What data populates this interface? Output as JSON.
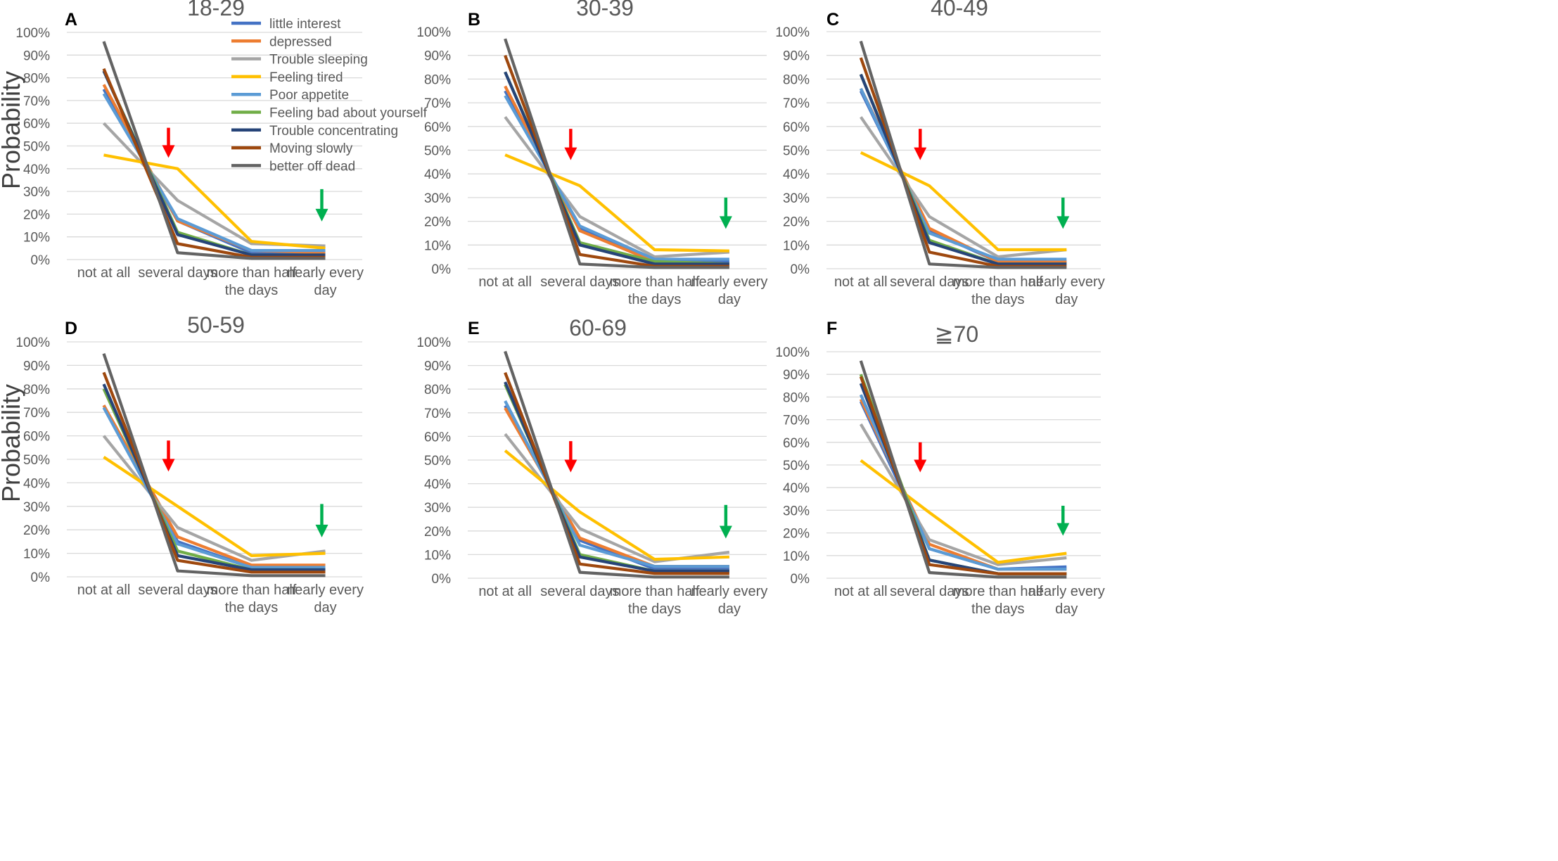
{
  "colors": {
    "series": [
      "#4472c4",
      "#ed7d31",
      "#a5a5a5",
      "#ffc000",
      "#5b9bd5",
      "#70ad47",
      "#264478",
      "#9e480e",
      "#636363"
    ],
    "arrow_red": "#ff0000",
    "arrow_green": "#00b050"
  },
  "legend": [
    "little interest",
    "depressed",
    "Trouble sleeping",
    "Feeling tired",
    "Poor appetite",
    "Feeling bad about yourself",
    "Trouble concentrating",
    "Moving  slowly",
    "better off dead"
  ],
  "categories": [
    {
      "lines": [
        "not at all"
      ]
    },
    {
      "lines": [
        "several days"
      ]
    },
    {
      "lines": [
        "more than half",
        "the days"
      ]
    },
    {
      "lines": [
        "nearly every",
        "day"
      ]
    }
  ],
  "y_ticks": [
    "0%",
    "10%",
    "20%",
    "30%",
    "40%",
    "50%",
    "60%",
    "70%",
    "80%",
    "90%",
    "100%"
  ],
  "ylabel": "Probability",
  "chart_data": [
    {
      "type": "line",
      "letter": "A",
      "title": "18-29",
      "ylim": [
        0,
        100
      ],
      "ylabel": "Probability",
      "categories": [
        "not at all",
        "several days",
        "more than half the days",
        "nearly every day"
      ],
      "arrows": {
        "red_category": 1,
        "red_from": 58,
        "red_to": 46,
        "green_category": 3,
        "green_from": 31,
        "green_to": 18
      },
      "series": [
        {
          "name": "little interest",
          "values": [
            75,
            17,
            3,
            3
          ]
        },
        {
          "name": "depressed",
          "values": [
            77,
            17,
            4,
            3
          ]
        },
        {
          "name": "Trouble sleeping",
          "values": [
            60,
            26,
            7,
            6
          ]
        },
        {
          "name": "Feeling tired",
          "values": [
            46,
            40,
            8,
            5
          ]
        },
        {
          "name": "Poor appetite",
          "values": [
            73,
            18,
            4,
            4
          ]
        },
        {
          "name": "Feeling bad about yourself",
          "values": [
            83,
            12,
            2,
            2
          ]
        },
        {
          "name": "Trouble concentrating",
          "values": [
            83,
            11,
            2,
            2
          ]
        },
        {
          "name": "Moving  slowly",
          "values": [
            84,
            7,
            1,
            1
          ]
        },
        {
          "name": "better off dead",
          "values": [
            96,
            3,
            0.5,
            0.5
          ]
        }
      ]
    },
    {
      "type": "line",
      "letter": "B",
      "title": "30-39",
      "ylim": [
        0,
        100
      ],
      "ylabel": "",
      "categories": [
        "not at all",
        "several days",
        "more than half the days",
        "nearly every day"
      ],
      "arrows": {
        "red_category": 1,
        "red_from": 59,
        "red_to": 47,
        "green_category": 3,
        "green_from": 30,
        "green_to": 18
      },
      "series": [
        {
          "name": "little interest",
          "values": [
            75,
            17,
            3,
            3
          ]
        },
        {
          "name": "depressed",
          "values": [
            77,
            16,
            3,
            2
          ]
        },
        {
          "name": "Trouble sleeping",
          "values": [
            64,
            22,
            5,
            7
          ]
        },
        {
          "name": "Feeling tired",
          "values": [
            48,
            35,
            8,
            7.5
          ]
        },
        {
          "name": "Poor appetite",
          "values": [
            73,
            18,
            4,
            4
          ]
        },
        {
          "name": "Feeling bad about yourself",
          "values": [
            83,
            11,
            3,
            2
          ]
        },
        {
          "name": "Trouble concentrating",
          "values": [
            83,
            10,
            2,
            2
          ]
        },
        {
          "name": "Moving  slowly",
          "values": [
            90,
            6,
            1,
            1
          ]
        },
        {
          "name": "better off dead",
          "values": [
            97,
            2,
            0.5,
            0.5
          ]
        }
      ]
    },
    {
      "type": "line",
      "letter": "C",
      "title": "40-49",
      "ylim": [
        0,
        100
      ],
      "ylabel": "",
      "categories": [
        "not at all",
        "several days",
        "more than half the days",
        "nearly every day"
      ],
      "arrows": {
        "red_category": 1,
        "red_from": 59,
        "red_to": 47,
        "green_category": 3,
        "green_from": 30,
        "green_to": 18
      },
      "series": [
        {
          "name": "little interest",
          "values": [
            75,
            16,
            3,
            3
          ]
        },
        {
          "name": "depressed",
          "values": [
            76,
            17,
            3,
            3
          ]
        },
        {
          "name": "Trouble sleeping",
          "values": [
            64,
            22,
            5,
            8
          ]
        },
        {
          "name": "Feeling tired",
          "values": [
            49,
            35,
            8,
            8
          ]
        },
        {
          "name": "Poor appetite",
          "values": [
            76,
            15,
            4,
            4
          ]
        },
        {
          "name": "Feeling bad about yourself",
          "values": [
            82,
            12,
            2,
            2
          ]
        },
        {
          "name": "Trouble concentrating",
          "values": [
            82,
            11,
            2,
            2
          ]
        },
        {
          "name": "Moving  slowly",
          "values": [
            89,
            7,
            1,
            1
          ]
        },
        {
          "name": "better off dead",
          "values": [
            96,
            2,
            0.5,
            0.5
          ]
        }
      ]
    },
    {
      "type": "line",
      "letter": "D",
      "title": "50-59",
      "ylim": [
        0,
        100
      ],
      "ylabel": "Probability",
      "categories": [
        "not at all",
        "several days",
        "more than half the days",
        "nearly every day"
      ],
      "arrows": {
        "red_category": 1,
        "red_from": 58,
        "red_to": 46,
        "green_category": 3,
        "green_from": 31,
        "green_to": 18
      },
      "series": [
        {
          "name": "little interest",
          "values": [
            73,
            15,
            4,
            4
          ]
        },
        {
          "name": "depressed",
          "values": [
            73,
            17,
            5,
            5
          ]
        },
        {
          "name": "Trouble sleeping",
          "values": [
            60,
            21,
            7,
            11
          ]
        },
        {
          "name": "Feeling tired",
          "values": [
            51,
            30,
            9,
            10
          ]
        },
        {
          "name": "Poor appetite",
          "values": [
            72,
            14,
            4,
            4
          ]
        },
        {
          "name": "Feeling bad about yourself",
          "values": [
            80,
            11,
            3,
            3
          ]
        },
        {
          "name": "Trouble concentrating",
          "values": [
            82,
            9,
            3,
            3
          ]
        },
        {
          "name": "Moving  slowly",
          "values": [
            87,
            7,
            2,
            2
          ]
        },
        {
          "name": "better off dead",
          "values": [
            95,
            2.5,
            0.5,
            0.5
          ]
        }
      ]
    },
    {
      "type": "line",
      "letter": "E",
      "title": "60-69",
      "ylim": [
        0,
        100
      ],
      "ylabel": "",
      "categories": [
        "not at all",
        "several days",
        "more than half the days",
        "nearly every day"
      ],
      "arrows": {
        "red_category": 1,
        "red_from": 58,
        "red_to": 46,
        "green_category": 3,
        "green_from": 31,
        "green_to": 18
      },
      "series": [
        {
          "name": "little interest",
          "values": [
            73,
            16,
            4,
            4
          ]
        },
        {
          "name": "depressed",
          "values": [
            72,
            17,
            5,
            5
          ]
        },
        {
          "name": "Trouble sleeping",
          "values": [
            61,
            21,
            7,
            11
          ]
        },
        {
          "name": "Feeling tired",
          "values": [
            54,
            28,
            8,
            9
          ]
        },
        {
          "name": "Poor appetite",
          "values": [
            75,
            14,
            5,
            5
          ]
        },
        {
          "name": "Feeling bad about yourself",
          "values": [
            82,
            10,
            3,
            3
          ]
        },
        {
          "name": "Trouble concentrating",
          "values": [
            83,
            9,
            3,
            3
          ]
        },
        {
          "name": "Moving  slowly",
          "values": [
            87,
            6,
            2,
            2
          ]
        },
        {
          "name": "better off dead",
          "values": [
            96,
            2.5,
            0.5,
            0.5
          ]
        }
      ]
    },
    {
      "type": "line",
      "letter": "F",
      "title": "≧70",
      "ylim": [
        0,
        100
      ],
      "ylabel": "",
      "categories": [
        "not at all",
        "several days",
        "more than half the days",
        "nearly every day"
      ],
      "arrows": {
        "red_category": 1,
        "red_from": 60,
        "red_to": 48,
        "green_category": 3,
        "green_from": 32,
        "green_to": 20
      },
      "series": [
        {
          "name": "little interest",
          "values": [
            78,
            13,
            4,
            5
          ]
        },
        {
          "name": "depressed",
          "values": [
            79,
            15,
            4,
            4
          ]
        },
        {
          "name": "Trouble sleeping",
          "values": [
            68,
            17,
            6,
            9
          ]
        },
        {
          "name": "Feeling tired",
          "values": [
            52,
            29,
            7,
            11
          ]
        },
        {
          "name": "Poor appetite",
          "values": [
            81,
            13,
            4,
            4
          ]
        },
        {
          "name": "Feeling bad about yourself",
          "values": [
            90,
            8,
            2,
            2
          ]
        },
        {
          "name": "Trouble concentrating",
          "values": [
            86,
            8,
            2,
            2
          ]
        },
        {
          "name": "Moving  slowly",
          "values": [
            89,
            6,
            2,
            2
          ]
        },
        {
          "name": "better off dead",
          "values": [
            96,
            2.5,
            0.5,
            0.5
          ]
        }
      ]
    }
  ]
}
